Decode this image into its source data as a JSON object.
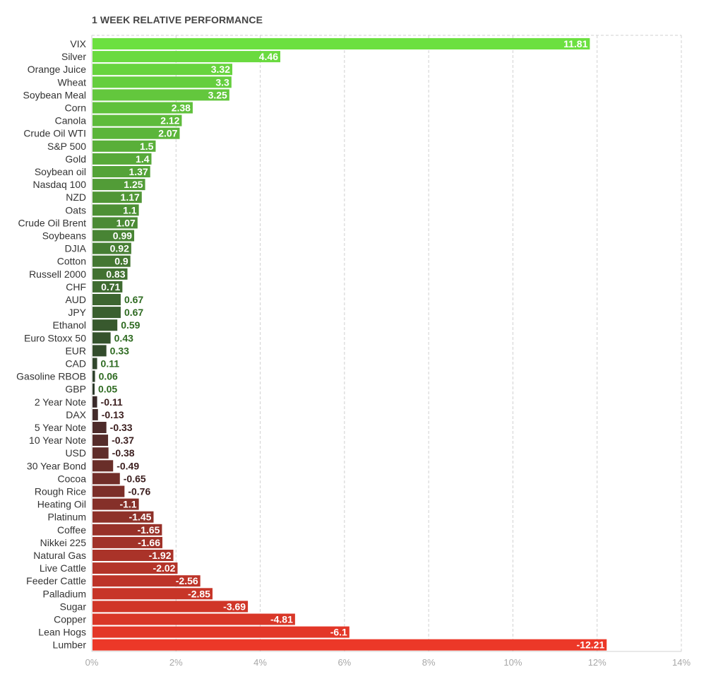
{
  "chart_data": {
    "type": "bar",
    "orientation": "horizontal",
    "title": "1 WEEK RELATIVE PERFORMANCE",
    "xlabel": "",
    "ylabel": "",
    "xlim": [
      0,
      14
    ],
    "x_ticks": [
      "0%",
      "2%",
      "4%",
      "6%",
      "8%",
      "10%",
      "12%",
      "14%"
    ],
    "grid": "vertical dashed",
    "categories": [
      "VIX",
      "Silver",
      "Orange Juice",
      "Wheat",
      "Soybean Meal",
      "Corn",
      "Canola",
      "Crude Oil WTI",
      "S&P 500",
      "Gold",
      "Soybean oil",
      "Nasdaq 100",
      "NZD",
      "Oats",
      "Crude Oil Brent",
      "Soybeans",
      "DJIA",
      "Cotton",
      "Russell 2000",
      "CHF",
      "AUD",
      "JPY",
      "Ethanol",
      "Euro Stoxx 50",
      "EUR",
      "CAD",
      "Gasoline RBOB",
      "GBP",
      "2 Year Note",
      "DAX",
      "5 Year Note",
      "10 Year Note",
      "USD",
      "30 Year Bond",
      "Cocoa",
      "Rough Rice",
      "Heating Oil",
      "Platinum",
      "Coffee",
      "Nikkei 225",
      "Natural Gas",
      "Live Cattle",
      "Feeder Cattle",
      "Palladium",
      "Sugar",
      "Copper",
      "Lean Hogs",
      "Lumber"
    ],
    "values": [
      11.81,
      4.46,
      3.32,
      3.3,
      3.25,
      2.38,
      2.12,
      2.07,
      1.5,
      1.4,
      1.37,
      1.25,
      1.17,
      1.1,
      1.07,
      0.99,
      0.92,
      0.9,
      0.83,
      0.71,
      0.67,
      0.67,
      0.59,
      0.43,
      0.33,
      0.11,
      0.06,
      0.05,
      -0.11,
      -0.13,
      -0.33,
      -0.37,
      -0.38,
      -0.49,
      -0.65,
      -0.76,
      -1.1,
      -1.45,
      -1.65,
      -1.66,
      -1.92,
      -2.02,
      -2.56,
      -2.85,
      -3.69,
      -4.81,
      -6.1,
      -12.21
    ],
    "value_labels": [
      "11.81",
      "4.46",
      "3.32",
      "3.3",
      "3.25",
      "2.38",
      "2.12",
      "2.07",
      "1.5",
      "1.4",
      "1.37",
      "1.25",
      "1.17",
      "1.1",
      "1.07",
      "0.99",
      "0.92",
      "0.9",
      "0.83",
      "0.71",
      "0.67",
      "0.67",
      "0.59",
      "0.43",
      "0.33",
      "0.11",
      "0.06",
      "0.05",
      "-0.11",
      "-0.13",
      "-0.33",
      "-0.37",
      "-0.38",
      "-0.49",
      "-0.65",
      "-0.76",
      "-1.1",
      "-1.45",
      "-1.65",
      "-1.66",
      "-1.92",
      "-2.02",
      "-2.56",
      "-2.85",
      "-3.69",
      "-4.81",
      "-6.1",
      "-12.21"
    ],
    "colors": {
      "positive_strong": "#6ce040",
      "positive_weak": "#2c3a2a",
      "negative_weak": "#3a2a2a",
      "negative_strong": "#ec3828",
      "grid": "#d0d0d0"
    },
    "note_bar_extent": "bar length proportional to absolute value"
  }
}
